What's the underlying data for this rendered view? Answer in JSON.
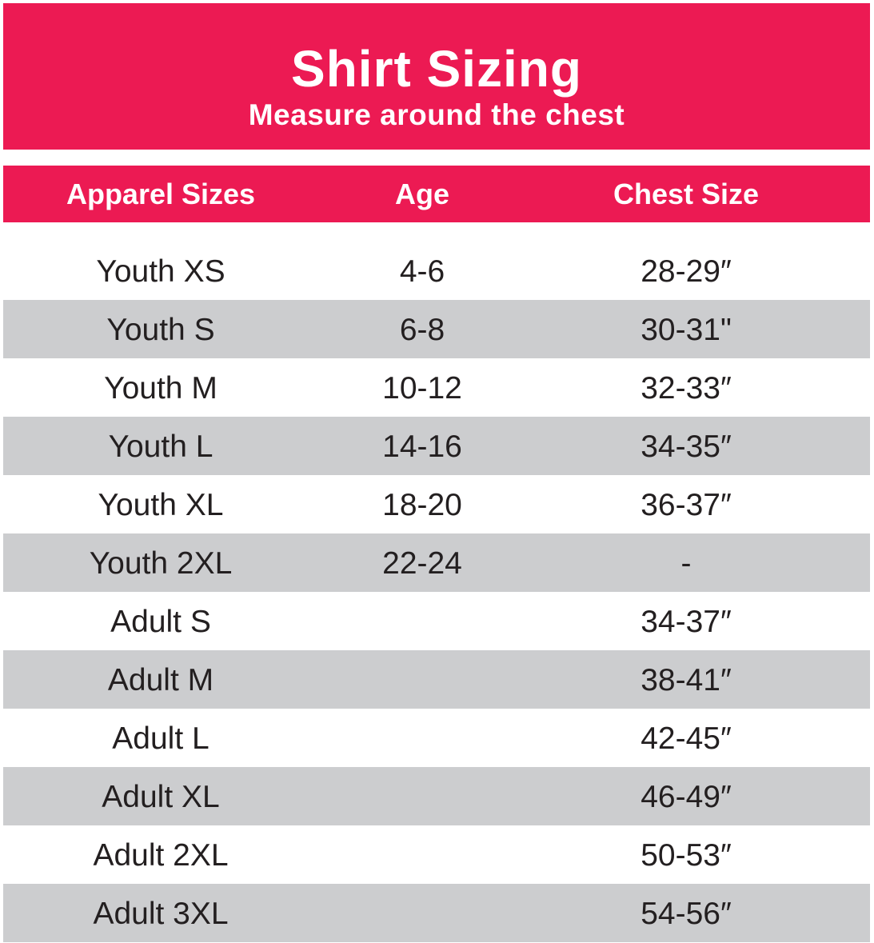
{
  "title": "Shirt Sizing",
  "subtitle": "Measure around the chest",
  "colors": {
    "accent": "#ec1a53",
    "shade": "#cccdcf",
    "text": "#231f20"
  },
  "headers": {
    "size": "Apparel Sizes",
    "age": "Age",
    "chest": "Chest Size"
  },
  "rows": [
    {
      "size": "Youth XS",
      "age": "4-6",
      "chest": "28-29″"
    },
    {
      "size": "Youth S",
      "age": "6-8",
      "chest": "30-31\""
    },
    {
      "size": "Youth M",
      "age": "10-12",
      "chest": "32-33″"
    },
    {
      "size": "Youth L",
      "age": "14-16",
      "chest": "34-35″"
    },
    {
      "size": "Youth XL",
      "age": "18-20",
      "chest": "36-37″"
    },
    {
      "size": "Youth 2XL",
      "age": "22-24",
      "chest": "-"
    },
    {
      "size": "Adult S",
      "age": "",
      "chest": "34-37″"
    },
    {
      "size": "Adult M",
      "age": "",
      "chest": "38-41″"
    },
    {
      "size": "Adult L",
      "age": "",
      "chest": "42-45″"
    },
    {
      "size": "Adult XL",
      "age": "",
      "chest": "46-49″"
    },
    {
      "size": "Adult 2XL",
      "age": "",
      "chest": "50-53″"
    },
    {
      "size": "Adult 3XL",
      "age": "",
      "chest": "54-56″"
    }
  ]
}
